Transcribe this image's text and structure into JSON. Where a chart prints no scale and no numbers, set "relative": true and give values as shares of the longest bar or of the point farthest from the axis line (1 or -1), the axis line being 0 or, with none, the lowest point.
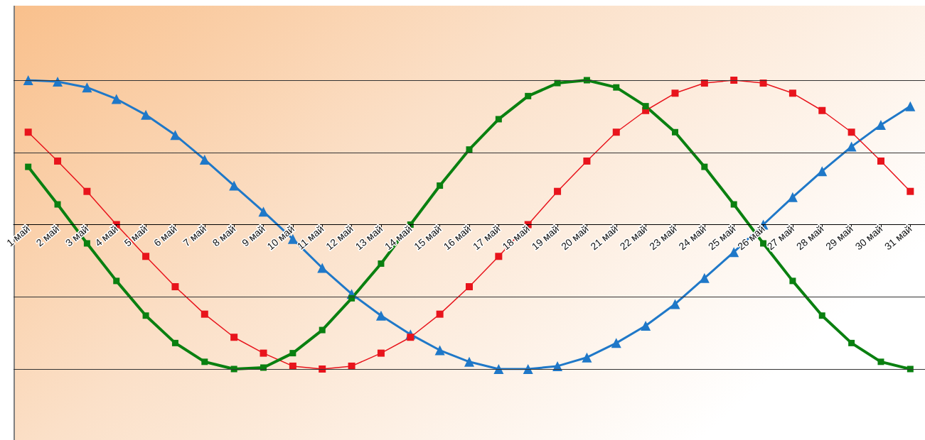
{
  "chart_data": {
    "type": "line",
    "relative": true,
    "ref_lines": [
      {
        "axis": "y",
        "value": 1,
        "color": "#333333"
      },
      {
        "axis": "y",
        "value": 0.5,
        "color": "#333333"
      },
      {
        "axis": "y",
        "value": -0.5,
        "color": "#333333"
      },
      {
        "axis": "y",
        "value": -1,
        "color": "#333333"
      }
    ],
    "categories": [
      "1 май",
      "2 май",
      "3 май",
      "4 май",
      "5 май",
      "6 май",
      "7 май",
      "8 май",
      "9 май",
      "10 май",
      "11 май",
      "12 май",
      "13 май",
      "14 май",
      "15 май",
      "16 май",
      "17 май",
      "18 май",
      "19 май",
      "20 май",
      "21 май",
      "22 май",
      "23 май",
      "24 май",
      "25 май",
      "26 май",
      "27 май",
      "28 май",
      "29 май",
      "30 май",
      "31 май"
    ],
    "series": [
      {
        "color": "#1f78c8",
        "marker": "triangle",
        "values": [
          1.0,
          0.99,
          0.95,
          0.87,
          0.76,
          0.62,
          0.45,
          0.27,
          0.09,
          -0.1,
          -0.3,
          -0.48,
          -0.63,
          -0.76,
          -0.87,
          -0.95,
          -1.0,
          -1.0,
          -0.98,
          -0.92,
          -0.82,
          -0.7,
          -0.55,
          -0.37,
          -0.19,
          0.0,
          0.19,
          0.37,
          0.54,
          0.69,
          0.82
        ]
      },
      {
        "color": "#e8141c",
        "marker": "square",
        "values": [
          0.64,
          0.44,
          0.23,
          0.0,
          -0.22,
          -0.43,
          -0.62,
          -0.78,
          -0.89,
          -0.98,
          -1.0,
          -0.98,
          -0.89,
          -0.78,
          -0.62,
          -0.43,
          -0.22,
          0.0,
          0.23,
          0.44,
          0.64,
          0.79,
          0.91,
          0.98,
          1.0,
          0.98,
          0.91,
          0.79,
          0.64,
          0.44,
          0.23
        ]
      },
      {
        "color": "#0a8010",
        "marker": "square",
        "values": [
          0.4,
          0.14,
          -0.13,
          -0.39,
          -0.63,
          -0.82,
          -0.95,
          -1.0,
          -0.99,
          -0.89,
          -0.73,
          -0.51,
          -0.27,
          0.0,
          0.27,
          0.52,
          0.73,
          0.89,
          0.98,
          1.0,
          0.95,
          0.82,
          0.64,
          0.4,
          0.14,
          -0.13,
          -0.39,
          -0.63,
          -0.82,
          -0.95,
          -1.0
        ]
      }
    ]
  }
}
